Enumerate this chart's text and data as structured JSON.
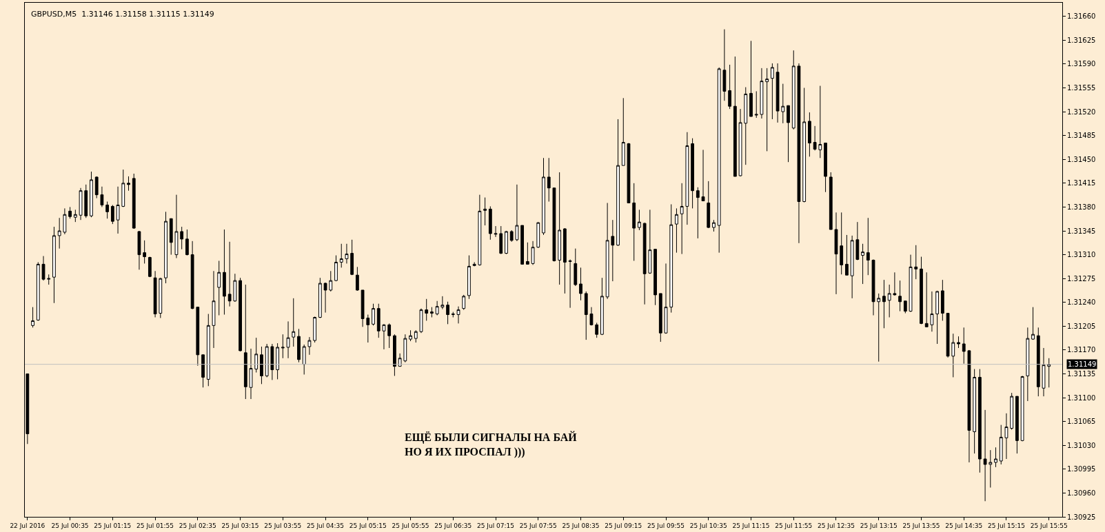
{
  "chart_data": {
    "type": "candlestick",
    "title": "GBPUSD,M5  1.31146 1.31158 1.31115 1.31149",
    "annotations": [
      "ЕЩЁ БЫЛИ СИГНАЛЫ НА БАЙ\nНО Я ИХ ПРОСПАЛ )))"
    ],
    "categories": [
      "22 Jul 2016",
      null,
      null,
      null,
      null,
      null,
      null,
      null,
      "25 Jul 00:35",
      null,
      null,
      null,
      null,
      null,
      null,
      null,
      "25 Jul 01:15",
      null,
      null,
      null,
      null,
      null,
      null,
      null,
      "25 Jul 01:55",
      null,
      null,
      null,
      null,
      null,
      null,
      null,
      "25 Jul 02:35",
      null,
      null,
      null,
      null,
      null,
      null,
      null,
      "25 Jul 03:15",
      null,
      null,
      null,
      null,
      null,
      null,
      null,
      "25 Jul 03:55",
      null,
      null,
      null,
      null,
      null,
      null,
      null,
      "25 Jul 04:35",
      null,
      null,
      null,
      null,
      null,
      null,
      null,
      "25 Jul 05:15",
      null,
      null,
      null,
      null,
      null,
      null,
      null,
      "25 Jul 05:55",
      null,
      null,
      null,
      null,
      null,
      null,
      null,
      "25 Jul 06:35",
      null,
      null,
      null,
      null,
      null,
      null,
      null,
      "25 Jul 07:15",
      null,
      null,
      null,
      null,
      null,
      null,
      null,
      "25 Jul 07:55",
      null,
      null,
      null,
      null,
      null,
      null,
      null,
      "25 Jul 08:35",
      null,
      null,
      null,
      null,
      null,
      null,
      null,
      "25 Jul 09:15",
      null,
      null,
      null,
      null,
      null,
      null,
      null,
      "25 Jul 09:55",
      null,
      null,
      null,
      null,
      null,
      null,
      null,
      "25 Jul 10:35",
      null,
      null,
      null,
      null,
      null,
      null,
      null,
      "25 Jul 11:15",
      null,
      null,
      null,
      null,
      null,
      null,
      null,
      "25 Jul 11:55",
      null,
      null,
      null,
      null,
      null,
      null,
      null,
      "25 Jul 12:35",
      null,
      null,
      null,
      null,
      null,
      null,
      null,
      "25 Jul 13:15",
      null,
      null,
      null,
      null,
      null,
      null,
      null,
      "25 Jul 13:55",
      null,
      null,
      null,
      null,
      null,
      null,
      null,
      "25 Jul 14:35",
      null,
      null,
      null,
      null,
      null,
      null,
      null,
      "25 Jul 15:15",
      null,
      null,
      null,
      null,
      null,
      null,
      null,
      "25 Jul 15:55"
    ],
    "ohlc": [
      [
        1.31135,
        1.31135,
        1.31032,
        1.31047
      ],
      [
        1.31206,
        1.31233,
        1.31203,
        1.31213
      ],
      [
        1.31214,
        1.31299,
        1.31213,
        1.31296
      ],
      [
        1.31296,
        1.31308,
        1.31272,
        1.31274
      ],
      [
        1.31274,
        1.31281,
        1.31266,
        1.31275
      ],
      [
        1.31277,
        1.31351,
        1.31239,
        1.31338
      ],
      [
        1.31338,
        1.31364,
        1.31319,
        1.31345
      ],
      [
        1.31343,
        1.31378,
        1.3134,
        1.31369
      ],
      [
        1.31374,
        1.3138,
        1.31363,
        1.31366
      ],
      [
        1.31365,
        1.31376,
        1.31358,
        1.31369
      ],
      [
        1.31368,
        1.31408,
        1.31361,
        1.31404
      ],
      [
        1.31404,
        1.31413,
        1.31364,
        1.31367
      ],
      [
        1.31367,
        1.31432,
        1.31365,
        1.3142
      ],
      [
        1.31424,
        1.31425,
        1.31393,
        1.31398
      ],
      [
        1.31398,
        1.3141,
        1.3138,
        1.31383
      ],
      [
        1.31383,
        1.31388,
        1.31363,
        1.31373
      ],
      [
        1.31381,
        1.31383,
        1.31355,
        1.31359
      ],
      [
        1.31361,
        1.3141,
        1.31341,
        1.31383
      ],
      [
        1.31381,
        1.31435,
        1.3138,
        1.31415
      ],
      [
        1.31415,
        1.31425,
        1.31404,
        1.31413
      ],
      [
        1.31422,
        1.31429,
        1.31348,
        1.31349
      ],
      [
        1.31344,
        1.31345,
        1.31288,
        1.3131
      ],
      [
        1.31313,
        1.31331,
        1.31297,
        1.31307
      ],
      [
        1.31306,
        1.31307,
        1.31277,
        1.31278
      ],
      [
        1.31276,
        1.31286,
        1.31218,
        1.31223
      ],
      [
        1.31224,
        1.31276,
        1.31217,
        1.31275
      ],
      [
        1.31276,
        1.31373,
        1.31268,
        1.31359
      ],
      [
        1.31363,
        1.31363,
        1.3131,
        1.31328
      ],
      [
        1.3131,
        1.31398,
        1.31305,
        1.31344
      ],
      [
        1.31344,
        1.31351,
        1.31318,
        1.31333
      ],
      [
        1.31333,
        1.31347,
        1.31309,
        1.3131
      ],
      [
        1.3131,
        1.3133,
        1.3123,
        1.31231
      ],
      [
        1.31233,
        1.31233,
        1.31147,
        1.31163
      ],
      [
        1.31163,
        1.31163,
        1.31115,
        1.3113
      ],
      [
        1.31127,
        1.31223,
        1.31117,
        1.31206
      ],
      [
        1.31206,
        1.31286,
        1.31173,
        1.31242
      ],
      [
        1.31262,
        1.31301,
        1.31221,
        1.31284
      ],
      [
        1.31284,
        1.31347,
        1.31222,
        1.31249
      ],
      [
        1.31252,
        1.31329,
        1.31234,
        1.31242
      ],
      [
        1.31242,
        1.31282,
        1.31241,
        1.31272
      ],
      [
        1.31272,
        1.31276,
        1.31168,
        1.31169
      ],
      [
        1.31166,
        1.31266,
        1.31098,
        1.31116
      ],
      [
        1.31115,
        1.31172,
        1.31098,
        1.31143
      ],
      [
        1.31142,
        1.31188,
        1.31137,
        1.31164
      ],
      [
        1.31163,
        1.31175,
        1.3112,
        1.31132
      ],
      [
        1.31132,
        1.31179,
        1.3113,
        1.31175
      ],
      [
        1.31175,
        1.31179,
        1.31126,
        1.31141
      ],
      [
        1.31141,
        1.3118,
        1.31127,
        1.31174
      ],
      [
        1.31173,
        1.31193,
        1.31158,
        1.31174
      ],
      [
        1.31174,
        1.31212,
        1.31158,
        1.31188
      ],
      [
        1.31189,
        1.31246,
        1.31175,
        1.31197
      ],
      [
        1.3119,
        1.31201,
        1.31152,
        1.31156
      ],
      [
        1.31149,
        1.31178,
        1.31134,
        1.31175
      ],
      [
        1.31175,
        1.31189,
        1.31163,
        1.31184
      ],
      [
        1.31184,
        1.31219,
        1.31181,
        1.31218
      ],
      [
        1.31218,
        1.31276,
        1.31217,
        1.31268
      ],
      [
        1.31268,
        1.31269,
        1.31225,
        1.31258
      ],
      [
        1.31258,
        1.31286,
        1.31256,
        1.31272
      ],
      [
        1.31272,
        1.31309,
        1.31271,
        1.31299
      ],
      [
        1.31299,
        1.31326,
        1.31291,
        1.31304
      ],
      [
        1.31304,
        1.31326,
        1.31297,
        1.31311
      ],
      [
        1.31312,
        1.31332,
        1.3128,
        1.31281
      ],
      [
        1.3128,
        1.31292,
        1.31257,
        1.31258
      ],
      [
        1.31258,
        1.31258,
        1.31204,
        1.31216
      ],
      [
        1.31217,
        1.31222,
        1.31181,
        1.31207
      ],
      [
        1.31208,
        1.31238,
        1.31206,
        1.31231
      ],
      [
        1.31231,
        1.31238,
        1.31188,
        1.31198
      ],
      [
        1.31198,
        1.31208,
        1.31171,
        1.31207
      ],
      [
        1.31207,
        1.31209,
        1.31173,
        1.31191
      ],
      [
        1.31191,
        1.31193,
        1.31132,
        1.31146
      ],
      [
        1.31146,
        1.31165,
        1.31146,
        1.31158
      ],
      [
        1.31154,
        1.31193,
        1.31152,
        1.31187
      ],
      [
        1.31186,
        1.31199,
        1.31183,
        1.31191
      ],
      [
        1.31187,
        1.31199,
        1.31181,
        1.31197
      ],
      [
        1.31197,
        1.31231,
        1.31195,
        1.31229
      ],
      [
        1.31229,
        1.31245,
        1.31213,
        1.31224
      ],
      [
        1.31226,
        1.31233,
        1.31218,
        1.31224
      ],
      [
        1.31223,
        1.31242,
        1.31221,
        1.31234
      ],
      [
        1.31233,
        1.31249,
        1.3123,
        1.31236
      ],
      [
        1.31236,
        1.31241,
        1.31208,
        1.31222
      ],
      [
        1.31222,
        1.31226,
        1.31218,
        1.31223
      ],
      [
        1.31222,
        1.31234,
        1.31209,
        1.31229
      ],
      [
        1.31231,
        1.31251,
        1.31229,
        1.31249
      ],
      [
        1.3125,
        1.31309,
        1.31245,
        1.31293
      ],
      [
        1.31294,
        1.31299,
        1.31293,
        1.31296
      ],
      [
        1.31295,
        1.31398,
        1.31294,
        1.31374
      ],
      [
        1.31375,
        1.31394,
        1.31353,
        1.31377
      ],
      [
        1.31377,
        1.31381,
        1.31332,
        1.31341
      ],
      [
        1.3134,
        1.31352,
        1.31336,
        1.31341
      ],
      [
        1.31341,
        1.31352,
        1.31311,
        1.31312
      ],
      [
        1.31312,
        1.31345,
        1.31311,
        1.31344
      ],
      [
        1.31344,
        1.31346,
        1.31329,
        1.31331
      ],
      [
        1.31332,
        1.31413,
        1.3133,
        1.31353
      ],
      [
        1.31353,
        1.31353,
        1.31296,
        1.31296
      ],
      [
        1.313,
        1.31328,
        1.31296,
        1.31296
      ],
      [
        1.31297,
        1.3133,
        1.31295,
        1.31321
      ],
      [
        1.31321,
        1.31358,
        1.3132,
        1.31357
      ],
      [
        1.31342,
        1.31452,
        1.31339,
        1.31424
      ],
      [
        1.31424,
        1.31452,
        1.31388,
        1.31408
      ],
      [
        1.31408,
        1.31408,
        1.313,
        1.31301
      ],
      [
        1.31302,
        1.31431,
        1.31266,
        1.31346
      ],
      [
        1.31348,
        1.31349,
        1.31253,
        1.31299
      ],
      [
        1.313,
        1.31303,
        1.31232,
        1.31301
      ],
      [
        1.31297,
        1.31319,
        1.31264,
        1.31266
      ],
      [
        1.31267,
        1.31291,
        1.31243,
        1.31253
      ],
      [
        1.31253,
        1.31256,
        1.31185,
        1.31222
      ],
      [
        1.31223,
        1.31233,
        1.31206,
        1.31207
      ],
      [
        1.31207,
        1.3121,
        1.31188,
        1.31193
      ],
      [
        1.31193,
        1.31276,
        1.31192,
        1.31249
      ],
      [
        1.31248,
        1.31386,
        1.31245,
        1.31331
      ],
      [
        1.31337,
        1.31361,
        1.31271,
        1.31324
      ],
      [
        1.31324,
        1.31509,
        1.31323,
        1.31441
      ],
      [
        1.31441,
        1.3154,
        1.31441,
        1.31475
      ],
      [
        1.31473,
        1.31474,
        1.31386,
        1.31386
      ],
      [
        1.31386,
        1.31415,
        1.31301,
        1.31349
      ],
      [
        1.3135,
        1.31376,
        1.31346,
        1.31358
      ],
      [
        1.31356,
        1.31357,
        1.31237,
        1.31282
      ],
      [
        1.31283,
        1.31376,
        1.31282,
        1.31317
      ],
      [
        1.31318,
        1.31318,
        1.31236,
        1.31251
      ],
      [
        1.31253,
        1.31253,
        1.31182,
        1.31195
      ],
      [
        1.31195,
        1.31297,
        1.31194,
        1.31233
      ],
      [
        1.31233,
        1.31384,
        1.31225,
        1.31354
      ],
      [
        1.31355,
        1.31378,
        1.31313,
        1.31369
      ],
      [
        1.3137,
        1.31415,
        1.31311,
        1.31381
      ],
      [
        1.31381,
        1.3149,
        1.31354,
        1.3147
      ],
      [
        1.31473,
        1.31481,
        1.31378,
        1.31404
      ],
      [
        1.31404,
        1.31409,
        1.31334,
        1.31394
      ],
      [
        1.31395,
        1.31464,
        1.31389,
        1.31389
      ],
      [
        1.31386,
        1.31418,
        1.31349,
        1.3135
      ],
      [
        1.3135,
        1.31361,
        1.31344,
        1.31357
      ],
      [
        1.31353,
        1.31585,
        1.31313,
        1.31583
      ],
      [
        1.31581,
        1.31641,
        1.31536,
        1.3155
      ],
      [
        1.31551,
        1.31589,
        1.31524,
        1.31528
      ],
      [
        1.31528,
        1.31601,
        1.31425,
        1.31425
      ],
      [
        1.31426,
        1.31524,
        1.31425,
        1.31504
      ],
      [
        1.31503,
        1.31556,
        1.31442,
        1.31546
      ],
      [
        1.31547,
        1.31624,
        1.31513,
        1.31513
      ],
      [
        1.31515,
        1.3155,
        1.31511,
        1.31516
      ],
      [
        1.31516,
        1.31584,
        1.3151,
        1.31565
      ],
      [
        1.31564,
        1.31584,
        1.31462,
        1.31568
      ],
      [
        1.31569,
        1.31591,
        1.31509,
        1.31585
      ],
      [
        1.31578,
        1.31591,
        1.31504,
        1.31521
      ],
      [
        1.3152,
        1.31561,
        1.31503,
        1.31528
      ],
      [
        1.31529,
        1.31529,
        1.31446,
        1.31504
      ],
      [
        1.31496,
        1.3161,
        1.31494,
        1.31587
      ],
      [
        1.31587,
        1.31591,
        1.31327,
        1.31388
      ],
      [
        1.31388,
        1.31555,
        1.31387,
        1.31505
      ],
      [
        1.31506,
        1.31519,
        1.31454,
        1.31474
      ],
      [
        1.31475,
        1.31499,
        1.31463,
        1.31465
      ],
      [
        1.31464,
        1.31558,
        1.31452,
        1.31472
      ],
      [
        1.31474,
        1.31474,
        1.31402,
        1.31425
      ],
      [
        1.31424,
        1.31431,
        1.31347,
        1.31347
      ],
      [
        1.31347,
        1.31372,
        1.31252,
        1.31311
      ],
      [
        1.31323,
        1.31372,
        1.31281,
        1.31295
      ],
      [
        1.31296,
        1.31339,
        1.3128,
        1.3128
      ],
      [
        1.31279,
        1.31338,
        1.31246,
        1.31331
      ],
      [
        1.31332,
        1.31358,
        1.31302,
        1.31303
      ],
      [
        1.31309,
        1.31326,
        1.31267,
        1.31314
      ],
      [
        1.31313,
        1.31364,
        1.3128,
        1.31302
      ],
      [
        1.31302,
        1.31303,
        1.31221,
        1.31241
      ],
      [
        1.31241,
        1.31253,
        1.31153,
        1.31246
      ],
      [
        1.31249,
        1.31273,
        1.31202,
        1.31241
      ],
      [
        1.31243,
        1.31266,
        1.31218,
        1.31253
      ],
      [
        1.31253,
        1.31284,
        1.3125,
        1.31251
      ],
      [
        1.31249,
        1.31272,
        1.31227,
        1.31241
      ],
      [
        1.31242,
        1.31242,
        1.31224,
        1.31227
      ],
      [
        1.31227,
        1.3131,
        1.31226,
        1.31292
      ],
      [
        1.31292,
        1.31324,
        1.31274,
        1.31289
      ],
      [
        1.31289,
        1.31307,
        1.31208,
        1.31209
      ],
      [
        1.31209,
        1.31284,
        1.31204,
        1.31204
      ],
      [
        1.31207,
        1.31256,
        1.31197,
        1.31223
      ],
      [
        1.31223,
        1.31257,
        1.31179,
        1.31256
      ],
      [
        1.31257,
        1.31273,
        1.31213,
        1.31224
      ],
      [
        1.31224,
        1.31224,
        1.31159,
        1.31161
      ],
      [
        1.31161,
        1.31194,
        1.3113,
        1.31181
      ],
      [
        1.31181,
        1.3119,
        1.31173,
        1.31179
      ],
      [
        1.31179,
        1.31203,
        1.3115,
        1.31168
      ],
      [
        1.31169,
        1.3117,
        1.31005,
        1.31052
      ],
      [
        1.3105,
        1.31142,
        1.31018,
        1.3113
      ],
      [
        1.3113,
        1.31142,
        1.3099,
        1.3101
      ],
      [
        1.3101,
        1.31082,
        1.30948,
        1.31002
      ],
      [
        1.31002,
        1.31023,
        1.30968,
        1.31005
      ],
      [
        1.31005,
        1.31027,
        1.30998,
        1.3101
      ],
      [
        1.31007,
        1.3106,
        1.31002,
        1.31042
      ],
      [
        1.31041,
        1.31077,
        1.3101,
        1.31057
      ],
      [
        1.31055,
        1.31107,
        1.31053,
        1.31102
      ],
      [
        1.31102,
        1.31102,
        1.31018,
        1.31037
      ],
      [
        1.31037,
        1.31132,
        1.31036,
        1.31131
      ],
      [
        1.31132,
        1.31203,
        1.31095,
        1.31187
      ],
      [
        1.31186,
        1.31233,
        1.31185,
        1.31193
      ],
      [
        1.31191,
        1.31203,
        1.31102,
        1.31116
      ],
      [
        1.31114,
        1.31173,
        1.31102,
        1.31148
      ],
      [
        1.31146,
        1.31158,
        1.31115,
        1.31149
      ]
    ],
    "ylim": [
      1.30925,
      1.3168
    ],
    "yticks": [
      {
        "value": 1.30925,
        "label": "1.30925"
      },
      {
        "value": 1.3096,
        "label": "1.30960"
      },
      {
        "value": 1.30995,
        "label": "1.30995"
      },
      {
        "value": 1.3103,
        "label": "1.31030"
      },
      {
        "value": 1.31065,
        "label": "1.31065"
      },
      {
        "value": 1.311,
        "label": "1.31100"
      },
      {
        "value": 1.31135,
        "label": "1.31135"
      },
      {
        "value": 1.3117,
        "label": "1.31170"
      },
      {
        "value": 1.31205,
        "label": "1.31205"
      },
      {
        "value": 1.3124,
        "label": "1.31240"
      },
      {
        "value": 1.31275,
        "label": "1.31275"
      },
      {
        "value": 1.3131,
        "label": "1.31310"
      },
      {
        "value": 1.31345,
        "label": "1.31345"
      },
      {
        "value": 1.3138,
        "label": "1.31380"
      },
      {
        "value": 1.31415,
        "label": "1.31415"
      },
      {
        "value": 1.3145,
        "label": "1.31450"
      },
      {
        "value": 1.31485,
        "label": "1.31485"
      },
      {
        "value": 1.3152,
        "label": "1.31520"
      },
      {
        "value": 1.31555,
        "label": "1.31555"
      },
      {
        "value": 1.3159,
        "label": "1.31590"
      },
      {
        "value": 1.31625,
        "label": "1.31625"
      },
      {
        "value": 1.3166,
        "label": "1.31660"
      }
    ],
    "ref_lines": [
      {
        "axis": "y",
        "value": 1.31149,
        "label": "1.31149",
        "color": "#c0c0c0"
      }
    ]
  }
}
